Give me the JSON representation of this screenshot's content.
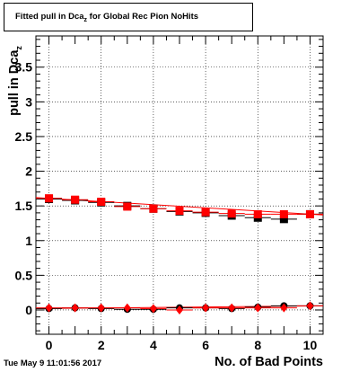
{
  "title": {
    "prefix": "Fitted pull in Dca",
    "subscript": "z",
    "suffix": " for Global Rec Pion NoHits"
  },
  "timestamp": "Tue May  9 11:01:56 2017",
  "chart_data": {
    "type": "scatter",
    "xlabel": "No. of Bad Points",
    "ylabel": {
      "main": "pull in Dca",
      "subscript": "z"
    },
    "xlim": [
      -0.5,
      10.5
    ],
    "ylim": [
      -0.35,
      3.95
    ],
    "x_ticks": [
      0,
      2,
      4,
      6,
      8,
      10
    ],
    "y_ticks": [
      0,
      0.5,
      1,
      1.5,
      2,
      2.5,
      3,
      3.5
    ],
    "y_tick_labels": [
      "0",
      "0.5",
      "1",
      "1.5",
      "2",
      "2.5",
      "3",
      "3.5"
    ],
    "grid": true,
    "colors": {
      "red": "#ff0000",
      "black": "#000000"
    },
    "series": [
      {
        "marker": "square",
        "color": "#000000",
        "x": [
          0,
          1,
          2,
          3,
          4,
          5,
          6,
          7,
          8,
          9,
          10
        ],
        "y": [
          1.6,
          1.58,
          1.55,
          1.5,
          1.46,
          1.42,
          1.4,
          1.36,
          1.33,
          1.31,
          1.38
        ]
      },
      {
        "marker": "square",
        "color": "#ff0000",
        "x": [
          0,
          1,
          2,
          3,
          4,
          5,
          6,
          7,
          8,
          9,
          10
        ],
        "y": [
          1.61,
          1.59,
          1.56,
          1.49,
          1.46,
          1.43,
          1.41,
          1.39,
          1.38,
          1.38,
          1.38
        ]
      },
      {
        "marker": "circle",
        "color": "#000000",
        "x": [
          0,
          1,
          2,
          3,
          4,
          5,
          6,
          7,
          8,
          9,
          10
        ],
        "y": [
          0.02,
          0.03,
          0.02,
          0.01,
          0.01,
          0.03,
          0.03,
          0.02,
          0.04,
          0.06,
          0.06
        ]
      },
      {
        "marker": "diamond",
        "color": "#ff0000",
        "x": [
          0,
          1,
          2,
          3,
          4,
          5,
          6,
          7,
          8,
          9,
          10
        ],
        "y": [
          0.03,
          0.03,
          0.03,
          0.03,
          0.02,
          0.0,
          0.03,
          0.03,
          0.03,
          0.03,
          0.06
        ]
      }
    ],
    "fits": [
      {
        "color": "#ff0000",
        "x": [
          -0.5,
          10.5
        ],
        "y": [
          1.62,
          1.37
        ]
      },
      {
        "color": "#ff0000",
        "x": [
          -0.5,
          10.5
        ],
        "y": [
          0.02,
          0.06
        ]
      }
    ]
  }
}
